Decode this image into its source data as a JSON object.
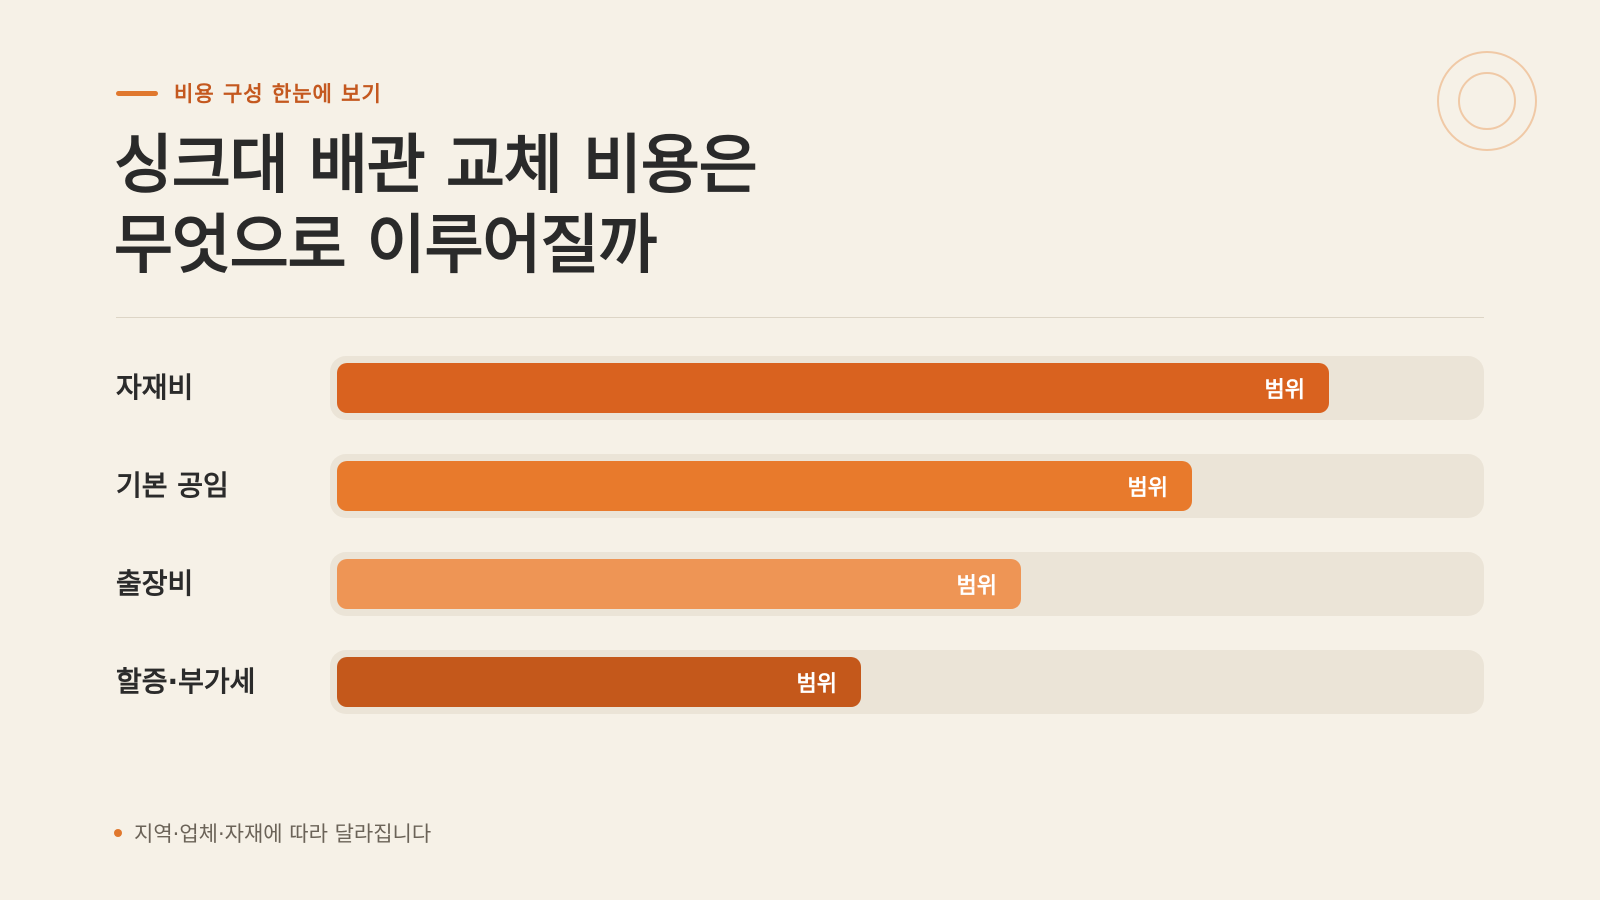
{
  "header": {
    "eyebrow": "비용 구성 한눈에 보기",
    "title": "싱크대 배관 교체 비용은\n무엇으로 이루어질까"
  },
  "colors": {
    "accent": "#e0782e",
    "eyebrow_text": "#c4581f",
    "track": "#ebe4d7",
    "background": "#f6f1e7"
  },
  "chart_data": {
    "type": "bar",
    "orientation": "horizontal",
    "title": "싱크대 배관 교체 비용은\n무엇으로 이루어질까",
    "categories": [
      "자재비",
      "기본 공임",
      "출장비",
      "할증·부가세"
    ],
    "values": [
      0.87,
      0.75,
      0.6,
      0.46
    ],
    "value_unit": "relative share of full bar (no scale printed)",
    "bar_labels": [
      "범위",
      "범위",
      "범위",
      "범위"
    ],
    "bar_colors": [
      "#d9621f",
      "#e87a2c",
      "#ee9555",
      "#c4581b"
    ],
    "xlim": [
      0,
      1
    ],
    "grid": false,
    "legend": "none"
  },
  "footnote": "지역·업체·자재에 따라 달라집니다"
}
